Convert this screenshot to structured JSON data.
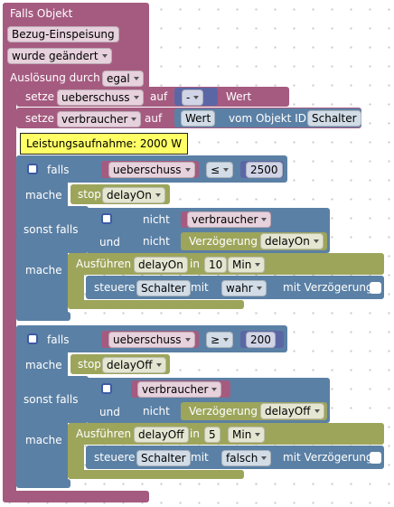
{
  "event": {
    "title": "Falls Objekt",
    "object": "Bezug-Einspeisung",
    "trigger": "wurde geändert",
    "cause_label": "Auslösung durch",
    "cause": "egal"
  },
  "statements": [
    {
      "keyword": "setze",
      "variable": "ueberschuss",
      "to": "auf",
      "operator": "-",
      "value": "Wert"
    },
    {
      "keyword": "setze",
      "variable": "verbraucher",
      "to": "auf",
      "value": "Wert",
      "of": "vom Objekt ID",
      "object": "Schalter"
    }
  ],
  "comment": "Leistungsaufnahme: 2000 W",
  "if_blocks": [
    {
      "if": "falls",
      "condition": {
        "variable": "ueberschuss",
        "operator": "≤",
        "number": 2500
      },
      "then": {
        "label": "mache",
        "action": "stop",
        "timer": "delayOn"
      },
      "else_if": {
        "label": "sonst falls",
        "left": {
          "not": "nicht",
          "variable": "verbraucher"
        },
        "and": "und",
        "right": {
          "not": "nicht",
          "function": "Verzögerung",
          "timer": "delayOn"
        }
      },
      "else_then": {
        "label": "mache",
        "run": "Ausführen",
        "timer": "delayOn",
        "in": "in",
        "amount": 10,
        "unit": "Min",
        "control": {
          "label": "steuere",
          "object": "Schalter",
          "with": "mit",
          "value": "wahr",
          "delay": "mit Verzögerung"
        }
      }
    },
    {
      "if": "falls",
      "condition": {
        "variable": "ueberschuss",
        "operator": "≥",
        "number": 200
      },
      "then": {
        "label": "mache",
        "action": "stop",
        "timer": "delayOff"
      },
      "else_if": {
        "label": "sonst falls",
        "left": {
          "variable": "verbraucher"
        },
        "and": "und",
        "right": {
          "not": "nicht",
          "function": "Verzögerung",
          "timer": "delayOff"
        }
      },
      "else_then": {
        "label": "mache",
        "run": "Ausführen",
        "timer": "delayOff",
        "in": "in",
        "amount": 5,
        "unit": "Min",
        "control": {
          "label": "steuere",
          "object": "Schalter",
          "with": "mit",
          "value": "falsch",
          "delay": "mit Verzögerung"
        }
      }
    }
  ]
}
